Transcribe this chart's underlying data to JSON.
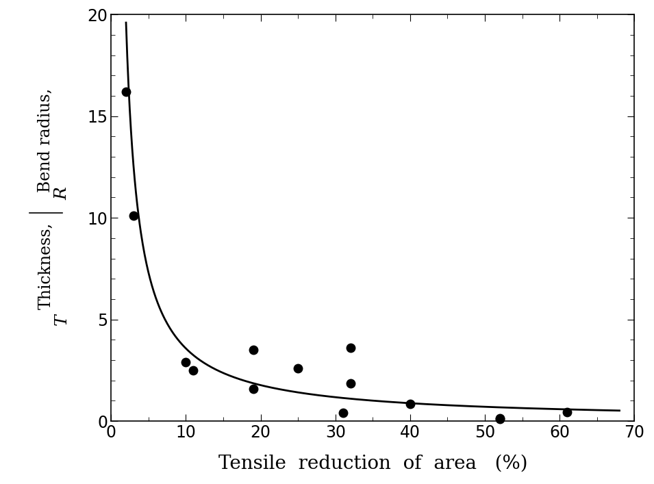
{
  "scatter_x": [
    2,
    3,
    10,
    11,
    19,
    19,
    25,
    31,
    32,
    32,
    40,
    52,
    52,
    61
  ],
  "scatter_y": [
    16.2,
    10.1,
    2.9,
    2.5,
    3.5,
    1.6,
    2.6,
    0.4,
    1.85,
    3.6,
    0.85,
    0.15,
    0.1,
    0.45
  ],
  "curve_A": 35.0,
  "curve_x0": 0.2,
  "xlim": [
    0,
    70
  ],
  "ylim": [
    0,
    20
  ],
  "xticks": [
    0,
    10,
    20,
    30,
    40,
    50,
    60,
    70
  ],
  "yticks": [
    0,
    5,
    10,
    15,
    20
  ],
  "xlabel": "Tensile  reduction  of  area   (%)",
  "background_color": "#ffffff",
  "marker_color": "#000000",
  "line_color": "#000000",
  "marker_size": 9,
  "line_width": 2.0,
  "xlabel_fontsize": 20,
  "ylabel_fontsize": 17,
  "tick_fontsize": 17
}
